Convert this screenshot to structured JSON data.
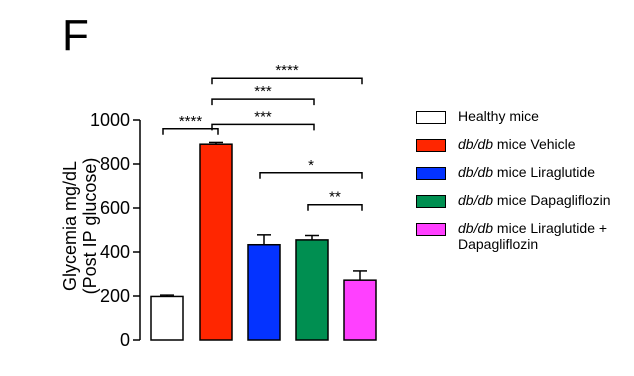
{
  "panel_label": "F",
  "chart_data": {
    "type": "bar",
    "ylabel_line1": "Glycemia mg/dL",
    "ylabel_line2": "(Post IP glucose)",
    "ylim": [
      0,
      1000
    ],
    "yticks": [
      "0",
      "200",
      "400",
      "600",
      "800",
      "1000"
    ],
    "grid": false,
    "legend_position": "right",
    "categories": [
      {
        "name_italic": "",
        "name": "Healthy mice",
        "name_line2": ""
      },
      {
        "name_italic": "db/db",
        "name": " mice Vehicle",
        "name_line2": ""
      },
      {
        "name_italic": "db/db",
        "name": " mice Liraglutide",
        "name_line2": ""
      },
      {
        "name_italic": "db/db",
        "name": " mice Dapagliflozin",
        "name_line2": ""
      },
      {
        "name_italic": "db/db",
        "name": " mice Liraglutide +",
        "name_line2": "Dapagliflozin"
      }
    ],
    "values": [
      198,
      890,
      433,
      455,
      272
    ],
    "errors": [
      6,
      8,
      45,
      20,
      42
    ],
    "colors": [
      "#ffffff",
      "#ff2600",
      "#0433ff",
      "#008f51",
      "#ff40ff"
    ],
    "significance": [
      {
        "from": 0,
        "to": 1,
        "label": "****",
        "y": 960
      },
      {
        "from": 1,
        "to": 4,
        "label": "****",
        "y": 1190
      },
      {
        "from": 1,
        "to": 3,
        "label": "***",
        "y": 1095
      },
      {
        "from": 1,
        "to": 3,
        "label": "***",
        "y": 980
      },
      {
        "from": 2,
        "to": 4,
        "label": "*",
        "y": 760
      },
      {
        "from": 3,
        "to": 4,
        "label": "**",
        "y": 615
      }
    ]
  }
}
